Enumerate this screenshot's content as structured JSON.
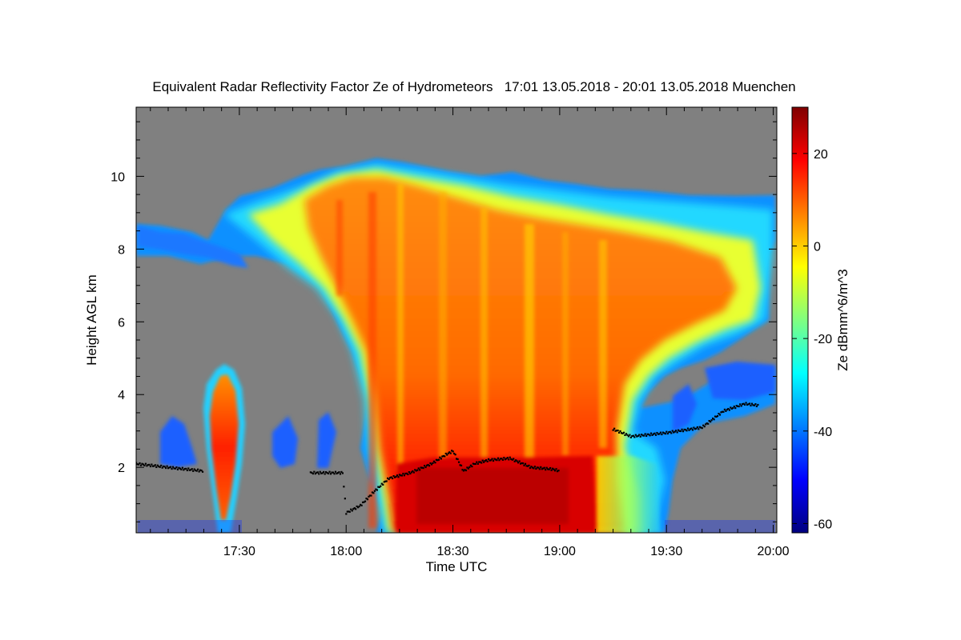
{
  "chart_data": {
    "type": "heatmap",
    "title": "Equivalent Radar Reflectivity Factor Ze of Hydrometeors   17:01 13.05.2018 - 20:01 13.05.2018 Muenchen",
    "xlabel": "Time UTC",
    "ylabel": "Height AGL km",
    "x_ticks": [
      "17:30",
      "18:00",
      "18:30",
      "19:00",
      "19:30",
      "20:00"
    ],
    "x_tick_minutes": [
      30,
      60,
      90,
      120,
      150,
      180
    ],
    "xlim_minutes": [
      1,
      181
    ],
    "y_ticks": [
      2,
      4,
      6,
      8,
      10
    ],
    "ylim": [
      0.2,
      11.9
    ],
    "colorbar": {
      "label": "Ze dBmm^6/m^3",
      "ticks": [
        20,
        0,
        -20,
        -40,
        -60
      ],
      "range": [
        -62,
        30
      ],
      "colors": [
        "#00007f",
        "#0000ff",
        "#0080ff",
        "#00ffff",
        "#80ff80",
        "#ffff00",
        "#ff8000",
        "#ff0000",
        "#7f0000"
      ]
    },
    "background_color": "#808080",
    "echo_regions": [
      {
        "name": "main-anvil",
        "ze_range": [
          -35,
          10
        ],
        "x_minutes": [
          26,
          181
        ],
        "height_km": [
          5.5,
          10.5
        ]
      },
      {
        "name": "main-core",
        "ze_range": [
          0,
          28
        ],
        "x_minutes": [
          62,
          142
        ],
        "height_km": [
          0.2,
          10.5
        ]
      },
      {
        "name": "early-cell",
        "ze_range": [
          -30,
          15
        ],
        "x_minutes": [
          24,
          32
        ],
        "height_km": [
          0.2,
          4.9
        ]
      },
      {
        "name": "melting-layer-echo",
        "ze_range": [
          15,
          28
        ],
        "x_minutes": [
          74,
          124
        ],
        "height_km": [
          0.2,
          2.4
        ]
      }
    ],
    "cloud_base_km": [
      [
        1,
        2.1
      ],
      [
        10,
        2.0
      ],
      [
        20,
        1.9
      ],
      [
        35,
        1.88
      ],
      [
        50,
        1.85
      ],
      [
        59,
        1.85
      ],
      [
        60,
        0.75
      ],
      [
        64,
        0.95
      ],
      [
        68,
        1.35
      ],
      [
        72,
        1.7
      ],
      [
        78,
        1.85
      ],
      [
        84,
        2.1
      ],
      [
        88,
        2.35
      ],
      [
        90,
        2.45
      ],
      [
        93,
        1.9
      ],
      [
        96,
        2.1
      ],
      [
        100,
        2.2
      ],
      [
        106,
        2.25
      ],
      [
        112,
        2.0
      ],
      [
        118,
        1.95
      ],
      [
        120,
        1.9
      ],
      [
        135,
        3.05
      ],
      [
        140,
        2.85
      ],
      [
        150,
        2.95
      ],
      [
        160,
        3.1
      ],
      [
        166,
        3.55
      ],
      [
        172,
        3.75
      ],
      [
        176,
        3.7
      ]
    ]
  }
}
